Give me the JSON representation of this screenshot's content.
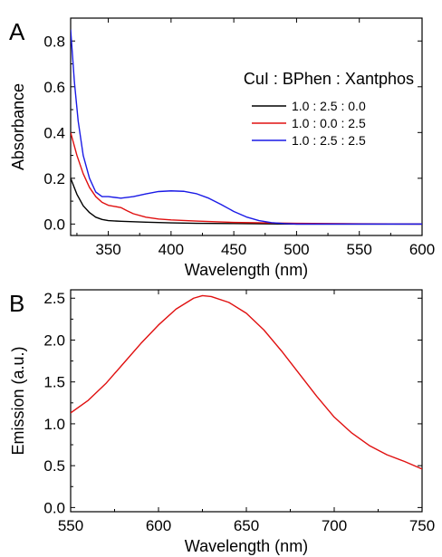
{
  "chart_data": [
    {
      "type": "line",
      "panel_label": "A",
      "xlabel": "Wavelength (nm)",
      "ylabel": "Absorbance",
      "xlim": [
        320,
        600
      ],
      "ylim": [
        -0.05,
        0.9
      ],
      "xticks": [
        350,
        400,
        450,
        500,
        550,
        600
      ],
      "yticks": [
        0.0,
        0.2,
        0.4,
        0.6,
        0.8
      ],
      "ytick_labels": [
        "0.0",
        "0.2",
        "0.4",
        "0.6",
        "0.8"
      ],
      "legend_title": "CuI : BPhen : Xantphos",
      "legend_position": "top-right",
      "series": [
        {
          "name": "1.0 : 2.5 : 0.0",
          "color": "#000000",
          "x": [
            320,
            325,
            330,
            335,
            340,
            345,
            350,
            360,
            370,
            380,
            400,
            420,
            450,
            500,
            550,
            600
          ],
          "y": [
            0.2,
            0.13,
            0.08,
            0.05,
            0.03,
            0.02,
            0.015,
            0.012,
            0.01,
            0.008,
            0.005,
            0.003,
            0.002,
            0.0,
            0.0,
            0.0
          ]
        },
        {
          "name": "1.0 : 0.0 : 2.5",
          "color": "#e01010",
          "x": [
            320,
            325,
            330,
            335,
            340,
            345,
            350,
            355,
            360,
            365,
            370,
            380,
            390,
            400,
            420,
            450,
            500,
            550,
            600
          ],
          "y": [
            0.4,
            0.3,
            0.22,
            0.16,
            0.12,
            0.095,
            0.082,
            0.077,
            0.072,
            0.058,
            0.045,
            0.03,
            0.022,
            0.018,
            0.013,
            0.007,
            0.003,
            0.001,
            0.0
          ]
        },
        {
          "name": "1.0 : 2.5 : 2.5",
          "color": "#1a1ae6",
          "x": [
            320,
            323,
            326,
            330,
            335,
            340,
            345,
            350,
            360,
            370,
            380,
            390,
            400,
            410,
            420,
            430,
            440,
            450,
            460,
            470,
            480,
            490,
            500,
            550,
            600
          ],
          "y": [
            0.85,
            0.62,
            0.45,
            0.3,
            0.2,
            0.14,
            0.12,
            0.12,
            0.113,
            0.12,
            0.132,
            0.142,
            0.145,
            0.143,
            0.133,
            0.113,
            0.085,
            0.055,
            0.031,
            0.015,
            0.006,
            0.002,
            0.0,
            0.0,
            0.0
          ]
        }
      ]
    },
    {
      "type": "line",
      "panel_label": "B",
      "xlabel": "Wavelength (nm)",
      "ylabel": "Emission (a.u.)",
      "xlim": [
        550,
        750
      ],
      "ylim": [
        -0.05,
        2.6
      ],
      "xticks": [
        550,
        600,
        650,
        700,
        750
      ],
      "yticks": [
        0.0,
        0.5,
        1.0,
        1.5,
        2.0,
        2.5
      ],
      "ytick_labels": [
        "0.0",
        "0.5",
        "1.0",
        "1.5",
        "2.0",
        "2.5"
      ],
      "series": [
        {
          "color": "#e01010",
          "x": [
            550,
            560,
            570,
            580,
            590,
            600,
            610,
            620,
            625,
            630,
            640,
            650,
            660,
            670,
            680,
            690,
            700,
            710,
            720,
            730,
            740,
            750
          ],
          "y": [
            1.13,
            1.28,
            1.48,
            1.72,
            1.96,
            2.18,
            2.37,
            2.5,
            2.53,
            2.52,
            2.45,
            2.32,
            2.12,
            1.87,
            1.6,
            1.33,
            1.08,
            0.89,
            0.74,
            0.63,
            0.55,
            0.46
          ]
        }
      ]
    }
  ]
}
